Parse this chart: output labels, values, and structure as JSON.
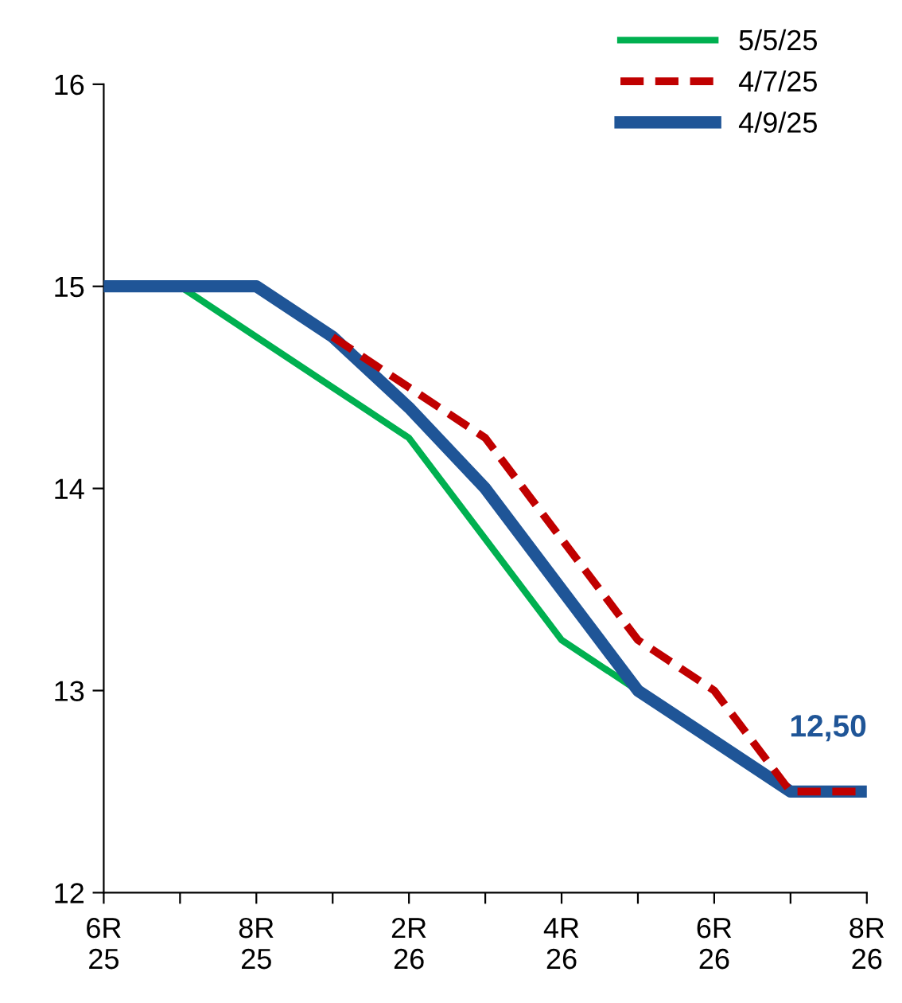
{
  "chart_data": {
    "type": "line",
    "categories": [
      "6R\n25",
      null,
      "8R\n25",
      null,
      "2R\n26",
      null,
      "4R\n26",
      null,
      "6R\n26",
      null,
      "8R\n26"
    ],
    "series": [
      {
        "name": "5/5/25",
        "color": "#00b050",
        "line_style": "solid",
        "values": [
          15,
          15,
          14.75,
          14.5,
          14.25,
          13.75,
          13.25,
          13.0,
          12.75,
          null,
          null
        ]
      },
      {
        "name": "4/7/25",
        "color": "#c00000",
        "line_style": "dashed",
        "values": [
          null,
          null,
          null,
          14.75,
          14.5,
          14.25,
          13.75,
          13.25,
          13.0,
          12.5,
          12.5
        ]
      },
      {
        "name": "4/9/25",
        "color": "#1f5597",
        "line_style": "solid",
        "values": [
          15,
          15,
          15,
          14.75,
          14.4,
          14.0,
          13.5,
          13.0,
          12.75,
          12.5,
          12.5
        ]
      }
    ],
    "ylim": [
      12,
      16
    ],
    "yticks": [
      12,
      13,
      14,
      15,
      16
    ],
    "grid": false,
    "legend": "top right",
    "marker": "none",
    "annotations": [
      {
        "text": "12,50",
        "x": "8R\n26",
        "y": 12.5
      }
    ]
  }
}
